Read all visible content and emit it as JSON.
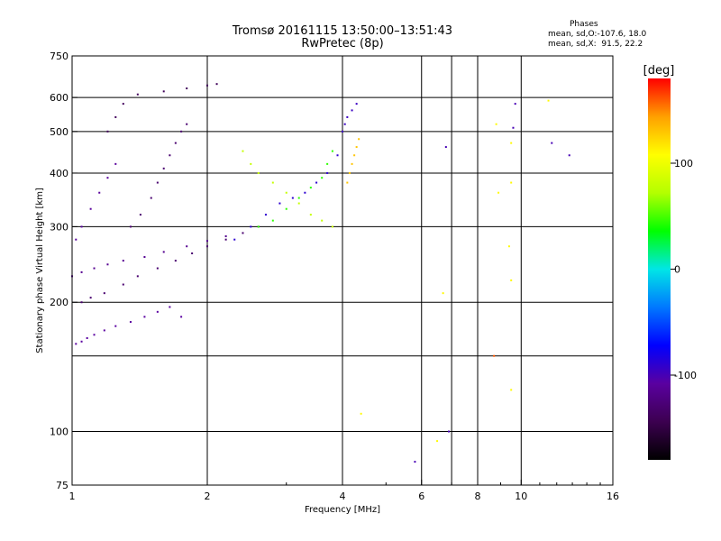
{
  "chart_data": {
    "type": "scatter",
    "title": "Tromsø 20161115 13:50:00–13:51:43",
    "subtitle": "RwPretec (8p)",
    "xlabel": "Frequency [MHz]",
    "ylabel": "Stationary phase Virtual Height [km]",
    "x_scale": "log",
    "y_scale": "log",
    "xlim": [
      1,
      16
    ],
    "ylim": [
      75,
      750
    ],
    "x_ticks": [
      1,
      2,
      4,
      6,
      8,
      10,
      16
    ],
    "x_tick_labels": [
      "1",
      "2",
      "4",
      "6",
      "8",
      "10",
      "16"
    ],
    "x_extra_gridlines": [
      7
    ],
    "y_ticks": [
      75,
      100,
      200,
      300,
      400,
      500,
      600,
      750
    ],
    "y_tick_labels": [
      "75",
      "100",
      "200",
      "300",
      "400",
      "500",
      "600",
      "750"
    ],
    "y_extra_gridlines": [
      150
    ],
    "grid": true,
    "colorbar": {
      "title": "[deg]",
      "range": [
        -180,
        180
      ],
      "ticks": [
        100,
        0,
        -100
      ],
      "tick_labels": [
        "100",
        "0",
        "-100"
      ],
      "colors": [
        "#000000",
        "#3c0050",
        "#5a00a0",
        "#0000ff",
        "#0078ff",
        "#00e6e6",
        "#00ff00",
        "#b4ff00",
        "#ffff00",
        "#ffa000",
        "#ff0000"
      ]
    },
    "phases_legend": {
      "heading": "Phases",
      "line_o": "mean, sd,O:-107.6, 18.0",
      "line_x": "mean, sd,X:  91.5, 22.2"
    },
    "series": [
      {
        "phase_deg": -108,
        "points": [
          [
            1.02,
            160
          ],
          [
            1.05,
            162
          ],
          [
            1.08,
            165
          ],
          [
            1.12,
            168
          ],
          [
            1.18,
            172
          ],
          [
            1.25,
            176
          ],
          [
            1.35,
            180
          ],
          [
            1.45,
            185
          ],
          [
            1.55,
            190
          ],
          [
            1.65,
            195
          ],
          [
            1.75,
            185
          ]
        ]
      },
      {
        "phase_deg": -130,
        "points": [
          [
            1.05,
            200
          ],
          [
            1.1,
            205
          ],
          [
            1.18,
            210
          ],
          [
            1.3,
            220
          ],
          [
            1.4,
            230
          ],
          [
            1.55,
            240
          ],
          [
            1.7,
            250
          ],
          [
            1.85,
            260
          ],
          [
            2.0,
            270
          ],
          [
            2.2,
            280
          ],
          [
            2.4,
            290
          ],
          [
            2.6,
            300
          ]
        ]
      },
      {
        "phase_deg": -115,
        "points": [
          [
            1.0,
            230
          ],
          [
            1.05,
            235
          ],
          [
            1.12,
            240
          ],
          [
            1.2,
            245
          ],
          [
            1.3,
            250
          ],
          [
            1.45,
            255
          ],
          [
            1.6,
            262
          ],
          [
            1.8,
            270
          ],
          [
            2.0,
            278
          ],
          [
            2.2,
            285
          ]
        ]
      },
      {
        "phase_deg": -130,
        "points": [
          [
            1.35,
            300
          ],
          [
            1.42,
            320
          ],
          [
            1.5,
            350
          ],
          [
            1.55,
            380
          ],
          [
            1.6,
            410
          ],
          [
            1.65,
            440
          ],
          [
            1.7,
            470
          ],
          [
            1.75,
            500
          ],
          [
            1.8,
            520
          ]
        ]
      },
      {
        "phase_deg": -140,
        "points": [
          [
            1.2,
            500
          ],
          [
            1.25,
            540
          ],
          [
            1.3,
            580
          ],
          [
            1.4,
            610
          ],
          [
            1.6,
            620
          ],
          [
            1.8,
            630
          ],
          [
            2.0,
            640
          ],
          [
            2.1,
            645
          ]
        ]
      },
      {
        "phase_deg": -110,
        "points": [
          [
            1.02,
            280
          ],
          [
            1.05,
            300
          ],
          [
            1.1,
            330
          ],
          [
            1.15,
            360
          ],
          [
            1.2,
            390
          ],
          [
            1.25,
            420
          ]
        ]
      },
      {
        "phase_deg": 80,
        "points": [
          [
            2.4,
            450
          ],
          [
            2.5,
            420
          ],
          [
            2.6,
            400
          ],
          [
            2.8,
            380
          ],
          [
            3.0,
            360
          ],
          [
            3.2,
            340
          ],
          [
            3.4,
            320
          ],
          [
            3.6,
            310
          ],
          [
            3.8,
            300
          ]
        ]
      },
      {
        "phase_deg": 45,
        "points": [
          [
            2.6,
            300
          ],
          [
            2.8,
            310
          ],
          [
            3.0,
            330
          ],
          [
            3.2,
            350
          ],
          [
            3.4,
            370
          ],
          [
            3.6,
            390
          ],
          [
            3.7,
            420
          ],
          [
            3.8,
            450
          ]
        ]
      },
      {
        "phase_deg": 130,
        "points": [
          [
            4.1,
            380
          ],
          [
            4.15,
            400
          ],
          [
            4.2,
            420
          ],
          [
            4.25,
            440
          ],
          [
            4.3,
            460
          ],
          [
            4.35,
            480
          ]
        ]
      },
      {
        "phase_deg": -90,
        "points": [
          [
            2.3,
            280
          ],
          [
            2.5,
            300
          ],
          [
            2.7,
            320
          ],
          [
            2.9,
            340
          ],
          [
            3.1,
            350
          ],
          [
            3.3,
            360
          ],
          [
            3.5,
            380
          ],
          [
            3.7,
            400
          ],
          [
            3.9,
            440
          ]
        ]
      },
      {
        "phase_deg": -95,
        "points": [
          [
            4.0,
            500
          ],
          [
            4.05,
            520
          ],
          [
            4.1,
            540
          ],
          [
            4.2,
            560
          ],
          [
            4.3,
            580
          ]
        ]
      },
      {
        "phase_deg": 110,
        "points": [
          [
            4.4,
            110
          ],
          [
            6.5,
            95
          ],
          [
            6.7,
            210
          ],
          [
            8.8,
            520
          ],
          [
            8.9,
            360
          ],
          [
            9.4,
            270
          ],
          [
            9.5,
            225
          ],
          [
            9.5,
            125
          ],
          [
            9.5,
            470
          ],
          [
            9.5,
            380
          ],
          [
            11.5,
            590
          ]
        ]
      },
      {
        "phase_deg": -100,
        "points": [
          [
            5.8,
            85
          ],
          [
            6.9,
            100
          ],
          [
            6.8,
            460
          ],
          [
            9.6,
            510
          ],
          [
            9.7,
            580
          ],
          [
            11.7,
            470
          ],
          [
            12.8,
            440
          ]
        ]
      },
      {
        "phase_deg": 160,
        "points": [
          [
            8.7,
            150
          ]
        ]
      }
    ]
  }
}
